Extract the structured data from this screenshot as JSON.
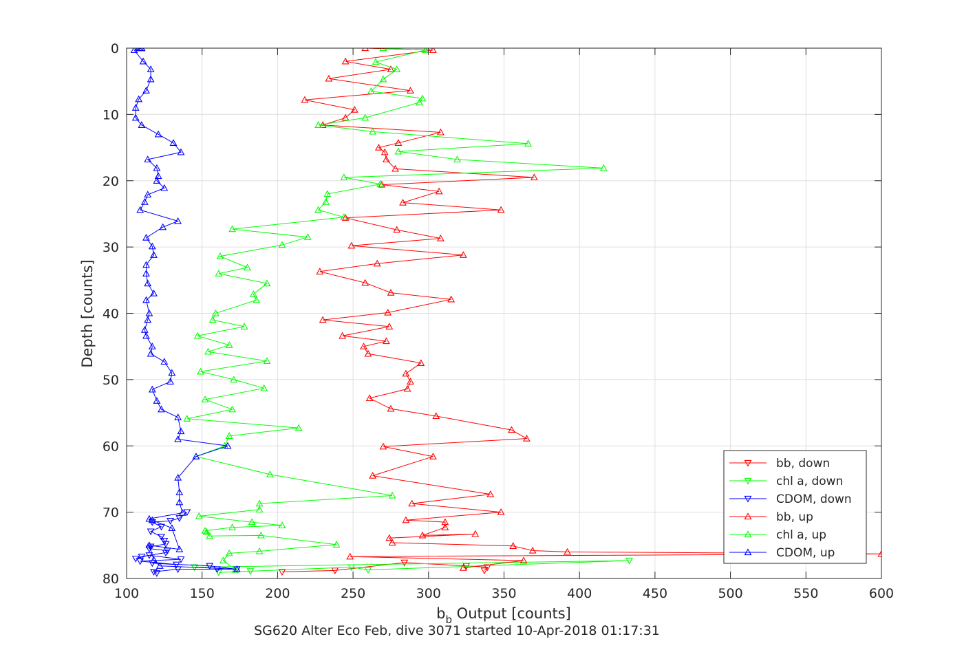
{
  "chart_data": {
    "type": "line",
    "xlabel_main": "b",
    "xlabel_sub": "b",
    "xlabel_rest": " Output [counts]",
    "ylabel": "Depth [counts]",
    "caption": "SG620 Alter Eco Feb, dive 3071 started 10-Apr-2018 01:17:31",
    "xlim": [
      100,
      600
    ],
    "ylim": [
      0,
      80
    ],
    "y_reversed": true,
    "grid": true,
    "legend_position": "bottom-right",
    "x_ticks": [
      "100",
      "150",
      "200",
      "250",
      "300",
      "350",
      "400",
      "450",
      "500",
      "550",
      "600"
    ],
    "y_ticks": [
      "0",
      "10",
      "20",
      "30",
      "40",
      "50",
      "60",
      "70",
      "80"
    ],
    "series": [
      {
        "name": "bb, down",
        "color": "#ff0000",
        "marker": "triangle-down",
        "x": [
          203,
          238,
          284,
          325,
          339,
          337
        ],
        "y": [
          79.0,
          78.8,
          77.6,
          78.1,
          78.3,
          78.8
        ]
      },
      {
        "name": "chl a, down",
        "color": "#00ff00",
        "marker": "triangle-down",
        "x": [
          161,
          182,
          249,
          260,
          433,
          145
        ],
        "y": [
          79.1,
          78.9,
          78.3,
          78.7,
          77.3,
          78.3
        ]
      },
      {
        "name": "CDOM, down",
        "color": "#0000ff",
        "marker": "triangle-down",
        "x": [
          120,
          118,
          134,
          160,
          173,
          155,
          117,
          133,
          109,
          136,
          115,
          106,
          110,
          126,
          127,
          115,
          116,
          126,
          125,
          123,
          116,
          123,
          117,
          129,
          135,
          140
        ],
        "y": [
          79.2,
          79.0,
          78.6,
          78.6,
          78.6,
          78.1,
          77.7,
          77.9,
          77.4,
          77.1,
          76.5,
          77.0,
          76.7,
          76.1,
          75.8,
          75.5,
          75.2,
          74.8,
          74.3,
          73.7,
          72.9,
          72.2,
          71.5,
          71.3,
          70.9,
          70.0
        ]
      },
      {
        "name": "bb, up",
        "color": "#ff0000",
        "marker": "triangle-up",
        "x": [
          323,
          363,
          248,
          600,
          392,
          369,
          356,
          276,
          274,
          331,
          296,
          311,
          311,
          285,
          348,
          289,
          341,
          263,
          303,
          270,
          365,
          355,
          305,
          275,
          261,
          286,
          288,
          285,
          295,
          260,
          257,
          272,
          243,
          274,
          230,
          273,
          315,
          275,
          258,
          228,
          266,
          323,
          249,
          308,
          279,
          245,
          348,
          283,
          307,
          269,
          370,
          278,
          272,
          271,
          267,
          280,
          308,
          230,
          245,
          251,
          218,
          288,
          234,
          275,
          245,
          303,
          258
        ],
        "y": [
          78.4,
          77.3,
          76.7,
          76.3,
          76.0,
          75.8,
          75.1,
          74.6,
          73.9,
          73.3,
          73.5,
          72.3,
          71.5,
          71.2,
          70.0,
          68.7,
          67.3,
          64.5,
          61.6,
          60.1,
          58.9,
          57.6,
          55.5,
          54.4,
          52.8,
          51.4,
          50.3,
          49.1,
          47.5,
          46.1,
          45.0,
          44.2,
          43.4,
          42.0,
          41.0,
          39.9,
          37.9,
          36.9,
          35.4,
          33.7,
          32.5,
          31.2,
          29.8,
          28.7,
          27.4,
          25.6,
          24.4,
          23.3,
          21.6,
          20.6,
          19.5,
          18.2,
          16.8,
          15.7,
          15.0,
          14.3,
          12.7,
          11.6,
          10.5,
          9.3,
          7.8,
          6.4,
          4.6,
          3.2,
          2.0,
          0.3,
          0.0
        ]
      },
      {
        "name": "chl a, up",
        "color": "#00ff00",
        "marker": "triangle-up",
        "x": [
          172,
          164,
          168,
          188,
          239,
          189,
          155,
          153,
          152,
          170,
          203,
          183,
          148,
          188,
          188,
          276,
          195,
          146,
          165,
          168,
          214,
          140,
          170,
          152,
          191,
          171,
          149,
          193,
          154,
          168,
          147,
          178,
          157,
          159,
          186,
          184,
          193,
          161,
          180,
          162,
          203,
          220,
          170,
          244,
          227,
          232,
          233,
          268,
          244,
          416,
          319,
          280,
          366,
          263,
          227,
          258,
          294,
          296,
          262,
          270,
          279,
          265,
          298,
          270
        ],
        "y": [
          78.7,
          77.3,
          76.2,
          75.9,
          74.9,
          73.5,
          73.6,
          73.0,
          72.8,
          72.3,
          72.0,
          71.5,
          70.6,
          69.6,
          68.7,
          67.5,
          64.3,
          61.6,
          60.0,
          58.5,
          57.3,
          55.9,
          54.5,
          53.0,
          51.3,
          50.0,
          48.8,
          47.2,
          45.8,
          44.8,
          43.4,
          42.0,
          41.0,
          40.0,
          38.0,
          37.1,
          35.5,
          34.0,
          33.1,
          31.4,
          29.7,
          28.5,
          27.3,
          25.5,
          24.4,
          23.2,
          22.0,
          20.5,
          19.5,
          18.1,
          16.8,
          15.6,
          14.4,
          12.6,
          11.6,
          10.5,
          8.2,
          7.6,
          6.5,
          4.7,
          3.2,
          2.1,
          0.3,
          0.0
        ]
      },
      {
        "name": "CDOM, up",
        "color": "#0000ff",
        "marker": "triangle-up",
        "x": [
          173,
          122,
          118,
          115,
          135,
          130,
          117,
          115,
          137,
          135,
          135,
          134,
          146,
          167,
          134,
          136,
          134,
          123,
          120,
          117,
          129,
          130,
          125,
          116,
          117,
          113,
          112,
          114,
          115,
          113,
          118,
          114,
          113,
          113,
          118,
          117,
          113,
          124,
          134,
          109,
          112,
          114,
          125,
          120,
          121,
          120,
          114,
          136,
          131,
          121,
          110,
          106,
          106,
          108,
          113,
          116,
          116,
          111,
          105,
          110,
          109,
          110,
          108,
          110
        ],
        "y": [
          78.6,
          78.1,
          77.2,
          75.0,
          75.6,
          72.4,
          71.2,
          71.0,
          70.1,
          68.5,
          67.0,
          64.8,
          61.6,
          60.0,
          59.0,
          57.8,
          55.7,
          54.5,
          53.2,
          51.5,
          50.3,
          49.0,
          47.3,
          46.1,
          45.0,
          43.4,
          42.5,
          41.0,
          40.0,
          38.0,
          37.0,
          35.5,
          34.0,
          32.7,
          31.2,
          29.9,
          28.6,
          27.0,
          26.1,
          24.4,
          23.2,
          22.1,
          21.1,
          20.0,
          19.3,
          18.1,
          16.8,
          15.7,
          14.3,
          13.0,
          11.6,
          10.5,
          9.0,
          7.7,
          6.4,
          4.7,
          3.2,
          2.0,
          0.3,
          0.0,
          0.0,
          0.0,
          0.0,
          0.0
        ]
      }
    ]
  }
}
